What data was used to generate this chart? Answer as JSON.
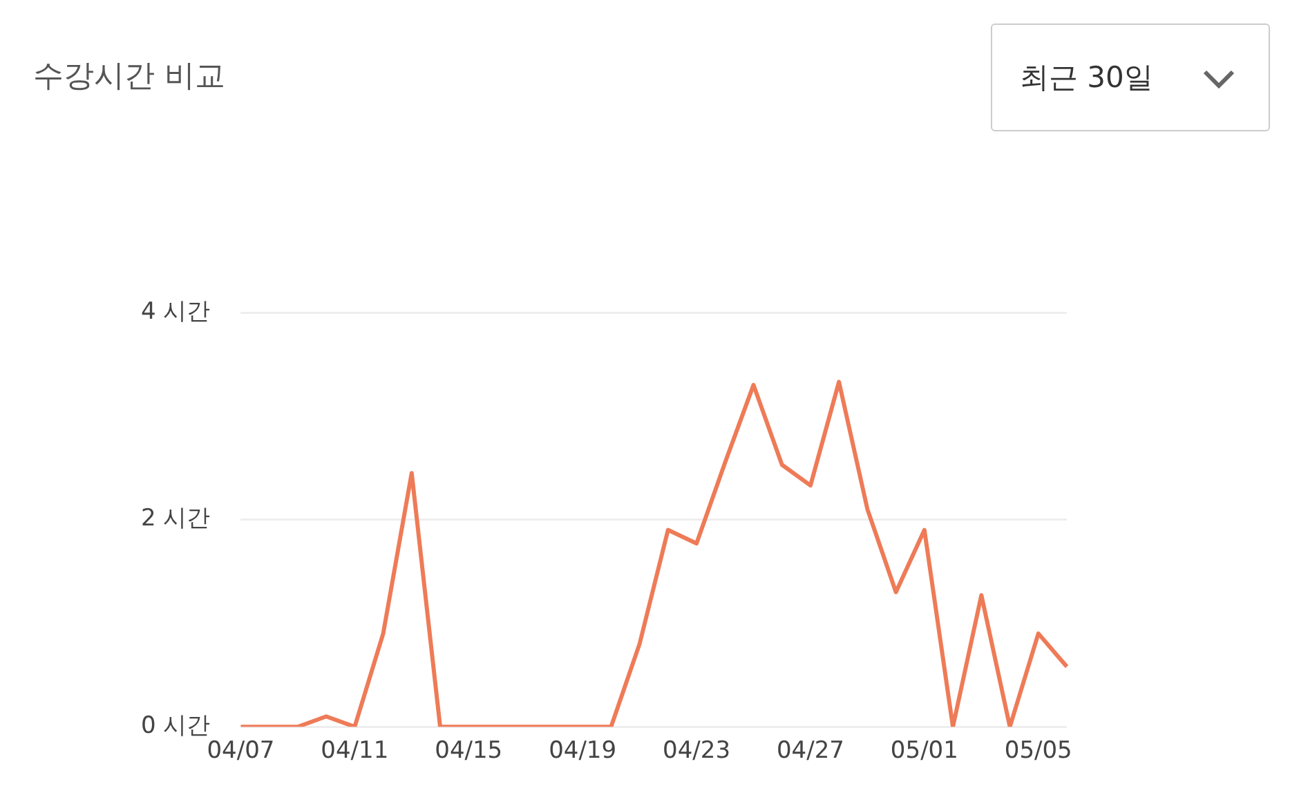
{
  "chart_data": {
    "type": "line",
    "title": "수강시간 비교",
    "annotations": [
      "최근 30일"
    ],
    "categories": [
      "04/07",
      null,
      null,
      null,
      "04/11",
      null,
      null,
      null,
      "04/15",
      null,
      null,
      null,
      "04/19",
      null,
      null,
      null,
      "04/23",
      null,
      null,
      null,
      "04/27",
      null,
      null,
      null,
      "05/01",
      null,
      null,
      null,
      "05/05",
      null
    ],
    "series": [
      {
        "color": "#ee7b57",
        "values": [
          0,
          0,
          0,
          0.1,
          0,
          0.9,
          2.45,
          0,
          0,
          0,
          0,
          0,
          0,
          0,
          0.8,
          1.9,
          1.77,
          2.55,
          3.3,
          2.53,
          2.33,
          3.33,
          2.1,
          1.3,
          1.9,
          0,
          1.27,
          0,
          0.9,
          0.58
        ]
      }
    ],
    "ylim": [
      0,
      4
    ],
    "yticks": [
      {
        "value": 0,
        "label": "0 시간"
      },
      {
        "value": 2,
        "label": "2 시간"
      },
      {
        "value": 4,
        "label": "4 시간"
      }
    ],
    "grid": "y",
    "legend": false,
    "marker": "none",
    "line_style": "solid"
  }
}
